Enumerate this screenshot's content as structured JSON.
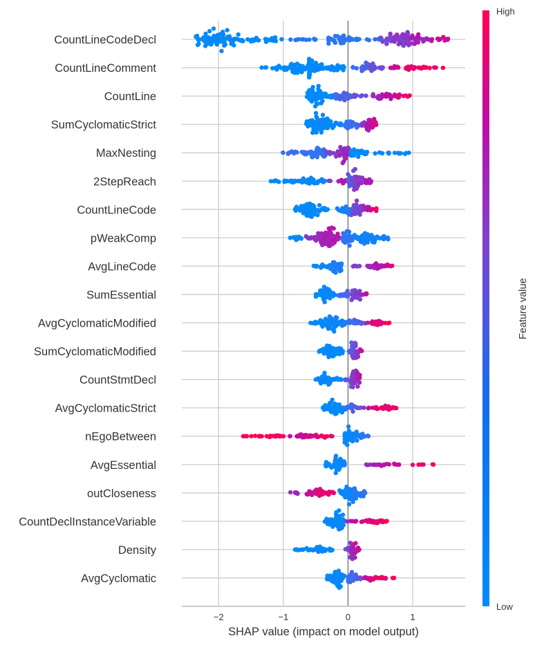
{
  "chart_data": {
    "type": "scatter",
    "subtype": "shap-beeswarm-summary",
    "title": "",
    "xlabel": "SHAP value (impact on model output)",
    "ylabel": "",
    "xlim": [
      -2.58,
      1.8
    ],
    "xticks": [
      -2,
      -1,
      0,
      1
    ],
    "xtick_labels": [
      "−2",
      "−1",
      "0",
      "1"
    ],
    "grid": true,
    "legend_position": "right",
    "colorbar": {
      "title": "Feature value",
      "high_label": "High",
      "low_label": "Low",
      "colors": [
        "#008bfb",
        "#6c5ae0",
        "#b316b0",
        "#ff0052"
      ]
    },
    "features": [
      {
        "name": "CountLineCodeDecl",
        "segments": [
          {
            "from": -2.35,
            "to": -1.0,
            "dens": 1.0,
            "peak": -2.0,
            "c0": 0.0,
            "c1": 0.05,
            "n": 120
          },
          {
            "from": -0.9,
            "to": -0.3,
            "dens": 0.15,
            "peak": -0.6,
            "c0": 0.2,
            "c1": 0.25,
            "n": 12
          },
          {
            "from": -0.3,
            "to": 0.5,
            "dens": 0.45,
            "peak": -0.2,
            "c0": 0.25,
            "c1": 0.3,
            "n": 45
          },
          {
            "from": 0.5,
            "to": 1.6,
            "dens": 0.8,
            "peak": 0.85,
            "c0": 0.55,
            "c1": 0.9,
            "n": 95
          }
        ]
      },
      {
        "name": "CountLineComment",
        "segments": [
          {
            "from": -1.35,
            "to": -0.45,
            "dens": 0.5,
            "peak": -0.75,
            "c0": 0.0,
            "c1": 0.0,
            "n": 60
          },
          {
            "from": -0.6,
            "to": -0.05,
            "dens": 1.0,
            "peak": -0.65,
            "c0": 0.0,
            "c1": 0.0,
            "n": 90
          },
          {
            "from": 0.05,
            "to": 0.6,
            "dens": 0.55,
            "peak": 0.35,
            "c0": 0.3,
            "c1": 0.6,
            "n": 50
          },
          {
            "from": 0.6,
            "to": 1.5,
            "dens": 0.25,
            "peak": 0.9,
            "c0": 0.85,
            "c1": 1.0,
            "n": 35
          }
        ]
      },
      {
        "name": "CountLine",
        "segments": [
          {
            "from": -0.65,
            "to": -0.2,
            "dens": 1.0,
            "peak": -0.5,
            "c0": 0.0,
            "c1": 0.05,
            "n": 80
          },
          {
            "from": -0.2,
            "to": 0.3,
            "dens": 0.4,
            "peak": -0.1,
            "c0": 0.35,
            "c1": 0.55,
            "n": 35
          },
          {
            "from": 0.25,
            "to": 1.0,
            "dens": 0.35,
            "peak": 0.6,
            "c0": 0.6,
            "c1": 1.0,
            "n": 45
          }
        ]
      },
      {
        "name": "SumCyclomaticStrict",
        "segments": [
          {
            "from": -0.65,
            "to": -0.1,
            "dens": 1.0,
            "peak": -0.45,
            "c0": 0.0,
            "c1": 0.05,
            "n": 100
          },
          {
            "from": -0.1,
            "to": 0.25,
            "dens": 0.5,
            "peak": 0.05,
            "c0": 0.3,
            "c1": 0.45,
            "n": 40
          },
          {
            "from": 0.2,
            "to": 0.48,
            "dens": 0.8,
            "peak": 0.35,
            "c0": 0.65,
            "c1": 0.95,
            "n": 45
          }
        ]
      },
      {
        "name": "MaxNesting",
        "segments": [
          {
            "from": -1.05,
            "to": -0.35,
            "dens": 0.5,
            "peak": -0.45,
            "c0": 0.3,
            "c1": 0.3,
            "n": 70
          },
          {
            "from": -0.35,
            "to": 0.05,
            "dens": 0.9,
            "peak": -0.05,
            "c0": 0.6,
            "c1": 0.75,
            "n": 70
          },
          {
            "from": 0.05,
            "to": 0.95,
            "dens": 0.45,
            "peak": 0.1,
            "c0": 0.0,
            "c1": 0.05,
            "n": 55
          }
        ]
      },
      {
        "name": "2StepReach",
        "segments": [
          {
            "from": -1.25,
            "to": -0.35,
            "dens": 0.3,
            "peak": -0.6,
            "c0": 0.0,
            "c1": 0.05,
            "n": 65
          },
          {
            "from": -0.35,
            "to": 0.05,
            "dens": 0.25,
            "peak": -0.1,
            "c0": 0.5,
            "c1": 0.9,
            "n": 20
          },
          {
            "from": 0.0,
            "to": 0.38,
            "dens": 1.0,
            "peak": 0.1,
            "c0": 0.45,
            "c1": 0.85,
            "n": 80
          }
        ]
      },
      {
        "name": "CountLineCode",
        "segments": [
          {
            "from": -0.82,
            "to": -0.3,
            "dens": 0.8,
            "peak": -0.6,
            "c0": 0.0,
            "c1": 0.02,
            "n": 70
          },
          {
            "from": -0.18,
            "to": 0.15,
            "dens": 0.5,
            "peak": 0.0,
            "c0": 0.05,
            "c1": 0.2,
            "n": 30
          },
          {
            "from": 0.05,
            "to": 0.45,
            "dens": 0.9,
            "peak": 0.12,
            "c0": 0.5,
            "c1": 0.95,
            "n": 55
          }
        ]
      },
      {
        "name": "pWeakComp",
        "segments": [
          {
            "from": -0.92,
            "to": -0.65,
            "dens": 0.2,
            "peak": -0.8,
            "c0": 0.0,
            "c1": 0.05,
            "n": 12
          },
          {
            "from": -0.65,
            "to": -0.05,
            "dens": 1.0,
            "peak": -0.3,
            "c0": 0.6,
            "c1": 0.85,
            "n": 100
          },
          {
            "from": -0.1,
            "to": 0.2,
            "dens": 0.9,
            "peak": -0.02,
            "c0": 0.25,
            "c1": 0.35,
            "n": 45
          },
          {
            "from": 0.1,
            "to": 0.65,
            "dens": 0.7,
            "peak": 0.3,
            "c0": 0.05,
            "c1": 0.15,
            "n": 55
          }
        ]
      },
      {
        "name": "AvgLineCode",
        "segments": [
          {
            "from": -0.55,
            "to": -0.1,
            "dens": 0.6,
            "peak": -0.2,
            "c0": 0.0,
            "c1": 0.2,
            "n": 60
          },
          {
            "from": 0.05,
            "to": 0.7,
            "dens": 0.25,
            "peak": 0.45,
            "c0": 0.55,
            "c1": 0.9,
            "n": 45
          }
        ]
      },
      {
        "name": "SumEssential",
        "segments": [
          {
            "from": -0.5,
            "to": -0.2,
            "dens": 0.9,
            "peak": -0.35,
            "c0": 0.0,
            "c1": 0.05,
            "n": 60
          },
          {
            "from": -0.15,
            "to": 0.3,
            "dens": 0.8,
            "peak": 0.12,
            "c0": 0.3,
            "c1": 0.8,
            "n": 55
          }
        ]
      },
      {
        "name": "AvgCyclomaticModified",
        "segments": [
          {
            "from": -0.58,
            "to": -0.05,
            "dens": 0.8,
            "peak": -0.25,
            "c0": 0.0,
            "c1": 0.1,
            "n": 75
          },
          {
            "from": -0.05,
            "to": 0.3,
            "dens": 0.3,
            "peak": 0.1,
            "c0": 0.2,
            "c1": 0.6,
            "n": 30
          },
          {
            "from": 0.3,
            "to": 0.65,
            "dens": 0.25,
            "peak": 0.45,
            "c0": 0.85,
            "c1": 1.0,
            "n": 30
          }
        ]
      },
      {
        "name": "SumCyclomaticModified",
        "segments": [
          {
            "from": -0.45,
            "to": -0.05,
            "dens": 0.8,
            "peak": -0.3,
            "c0": 0.0,
            "c1": 0.05,
            "n": 60
          },
          {
            "from": 0.0,
            "to": 0.22,
            "dens": 0.95,
            "peak": 0.1,
            "c0": 0.35,
            "c1": 0.85,
            "n": 40
          }
        ]
      },
      {
        "name": "CountStmtDecl",
        "segments": [
          {
            "from": -0.52,
            "to": -0.1,
            "dens": 0.6,
            "peak": -0.35,
            "c0": 0.0,
            "c1": 0.05,
            "n": 55
          },
          {
            "from": -0.05,
            "to": 0.2,
            "dens": 1.0,
            "peak": 0.1,
            "c0": 0.4,
            "c1": 0.8,
            "n": 40
          }
        ]
      },
      {
        "name": "AvgCyclomaticStrict",
        "segments": [
          {
            "from": -0.4,
            "to": -0.05,
            "dens": 0.9,
            "peak": -0.2,
            "c0": 0.0,
            "c1": 0.05,
            "n": 60
          },
          {
            "from": -0.05,
            "to": 0.25,
            "dens": 0.4,
            "peak": 0.02,
            "c0": 0.25,
            "c1": 0.6,
            "n": 25
          },
          {
            "from": 0.25,
            "to": 0.75,
            "dens": 0.25,
            "peak": 0.55,
            "c0": 0.85,
            "c1": 1.0,
            "n": 35
          }
        ]
      },
      {
        "name": "nEgoBetween",
        "segments": [
          {
            "from": -1.78,
            "to": -0.9,
            "dens": 0.1,
            "peak": -1.2,
            "c0": 1.0,
            "c1": 1.0,
            "n": 22
          },
          {
            "from": -0.9,
            "to": -0.05,
            "dens": 0.25,
            "peak": -0.6,
            "c0": 0.8,
            "c1": 1.0,
            "n": 45
          },
          {
            "from": -0.05,
            "to": 0.32,
            "dens": 1.0,
            "peak": 0.02,
            "c0": 0.0,
            "c1": 0.3,
            "n": 70
          }
        ]
      },
      {
        "name": "AvgEssential",
        "segments": [
          {
            "from": -0.35,
            "to": -0.05,
            "dens": 1.0,
            "peak": -0.15,
            "c0": 0.0,
            "c1": 0.05,
            "n": 70
          },
          {
            "from": 0.25,
            "to": 1.35,
            "dens": 0.12,
            "peak": 0.6,
            "c0": 0.7,
            "c1": 1.0,
            "n": 28
          }
        ]
      },
      {
        "name": "outCloseness",
        "segments": [
          {
            "from": -0.9,
            "to": -0.2,
            "dens": 0.4,
            "peak": -0.5,
            "c0": 0.7,
            "c1": 1.0,
            "n": 60
          },
          {
            "from": -0.15,
            "to": 0.27,
            "dens": 1.0,
            "peak": 0.05,
            "c0": 0.0,
            "c1": 0.3,
            "n": 75
          }
        ]
      },
      {
        "name": "CountDeclInstanceVariable",
        "segments": [
          {
            "from": -0.38,
            "to": -0.05,
            "dens": 1.0,
            "peak": -0.15,
            "c0": 0.0,
            "c1": 0.05,
            "n": 65
          },
          {
            "from": -0.05,
            "to": 0.6,
            "dens": 0.2,
            "peak": 0.4,
            "c0": 0.7,
            "c1": 1.0,
            "n": 45
          }
        ]
      },
      {
        "name": "Density",
        "segments": [
          {
            "from": -0.82,
            "to": -0.2,
            "dens": 0.25,
            "peak": -0.45,
            "c0": 0.0,
            "c1": 0.0,
            "n": 55
          },
          {
            "from": -0.05,
            "to": 0.18,
            "dens": 1.0,
            "peak": 0.05,
            "c0": 0.5,
            "c1": 0.9,
            "n": 45
          }
        ]
      },
      {
        "name": "AvgCyclomatic",
        "segments": [
          {
            "from": -0.33,
            "to": -0.05,
            "dens": 1.0,
            "peak": -0.15,
            "c0": 0.0,
            "c1": 0.05,
            "n": 60
          },
          {
            "from": -0.05,
            "to": 0.2,
            "dens": 0.6,
            "peak": 0.05,
            "c0": 0.25,
            "c1": 0.5,
            "n": 35
          },
          {
            "from": 0.2,
            "to": 0.72,
            "dens": 0.25,
            "peak": 0.35,
            "c0": 0.85,
            "c1": 1.0,
            "n": 30
          }
        ]
      }
    ]
  }
}
